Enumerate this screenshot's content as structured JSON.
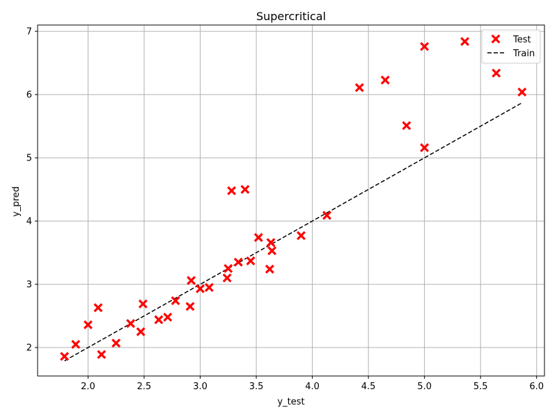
{
  "chart_data": {
    "type": "scatter",
    "title": "Supercritical",
    "xlabel": "y_test",
    "ylabel": "y_pred",
    "xlim": [
      1.55,
      6.07
    ],
    "ylim": [
      1.55,
      7.1
    ],
    "xticks": [
      "2.0",
      "2.5",
      "3.0",
      "3.5",
      "4.0",
      "4.5",
      "5.0",
      "5.5",
      "6.0"
    ],
    "yticks": [
      "2",
      "3",
      "4",
      "5",
      "6",
      "7"
    ],
    "grid": true,
    "legend_position": "top-right",
    "series": [
      {
        "name": "Test",
        "kind": "scatter",
        "marker": "x",
        "color": "#ff0000",
        "points": [
          [
            1.79,
            1.86
          ],
          [
            1.89,
            2.05
          ],
          [
            2.0,
            2.36
          ],
          [
            2.09,
            2.63
          ],
          [
            2.12,
            1.89
          ],
          [
            2.25,
            2.07
          ],
          [
            2.38,
            2.38
          ],
          [
            2.47,
            2.25
          ],
          [
            2.49,
            2.69
          ],
          [
            2.63,
            2.44
          ],
          [
            2.71,
            2.48
          ],
          [
            2.78,
            2.74
          ],
          [
            2.91,
            2.65
          ],
          [
            2.92,
            3.06
          ],
          [
            3.0,
            2.93
          ],
          [
            3.08,
            2.95
          ],
          [
            3.24,
            3.1
          ],
          [
            3.25,
            3.25
          ],
          [
            3.28,
            4.48
          ],
          [
            3.34,
            3.35
          ],
          [
            3.4,
            4.5
          ],
          [
            3.45,
            3.37
          ],
          [
            3.52,
            3.74
          ],
          [
            3.62,
            3.24
          ],
          [
            3.63,
            3.66
          ],
          [
            3.64,
            3.53
          ],
          [
            3.9,
            3.77
          ],
          [
            4.13,
            4.09
          ],
          [
            4.42,
            6.11
          ],
          [
            4.65,
            6.23
          ],
          [
            4.84,
            5.51
          ],
          [
            5.0,
            6.76
          ],
          [
            5.0,
            5.16
          ],
          [
            5.36,
            6.84
          ],
          [
            5.64,
            6.34
          ],
          [
            5.87,
            6.04
          ]
        ]
      },
      {
        "name": "Train",
        "kind": "line",
        "style": "dashed",
        "color": "#000000",
        "points": [
          [
            1.79,
            1.79
          ],
          [
            5.87,
            5.87
          ]
        ]
      }
    ]
  }
}
